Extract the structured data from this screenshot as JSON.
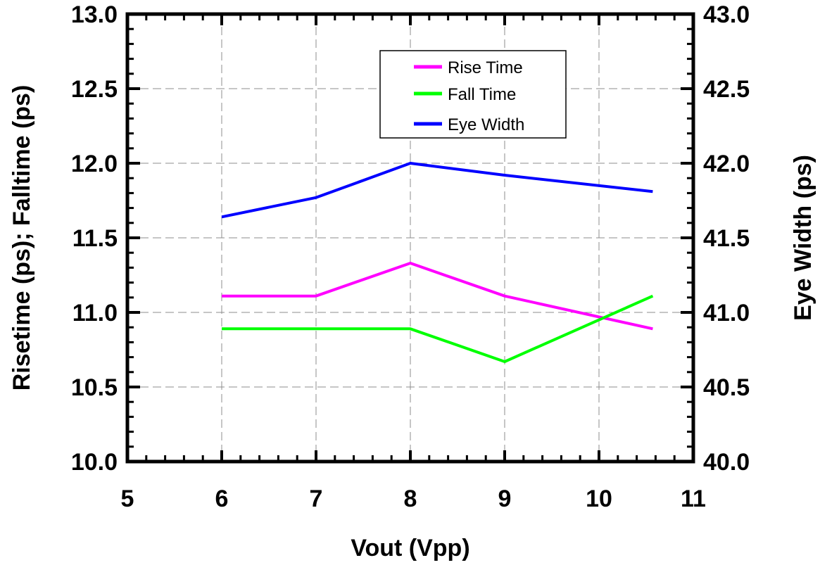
{
  "chart_data": {
    "type": "line",
    "xlabel": "Vout (Vpp)",
    "ylabel": "Risetime (ps); Falltime (ps)",
    "y2label": "Eye Width (ps)",
    "xlim": [
      5,
      11
    ],
    "ylim": [
      10.0,
      13.0
    ],
    "y2lim": [
      40.0,
      43.0
    ],
    "xticks": [
      "5",
      "6",
      "7",
      "8",
      "9",
      "10",
      "11"
    ],
    "yticks": [
      "10.0",
      "10.5",
      "11.0",
      "11.5",
      "12.0",
      "12.5",
      "13.0"
    ],
    "y2ticks": [
      "40.0",
      "40.5",
      "41.0",
      "41.5",
      "42.0",
      "42.5",
      "43.0"
    ],
    "grid": true,
    "legend_position": "top-center",
    "series": [
      {
        "name": "Rise Time",
        "axis": "left",
        "color": "#ff00ff",
        "points": [
          [
            6,
            11.11
          ],
          [
            7,
            11.11
          ],
          [
            8,
            11.33
          ],
          [
            9,
            11.11
          ],
          [
            10.57,
            10.89
          ]
        ]
      },
      {
        "name": "Fall Time",
        "axis": "left",
        "color": "#00ff00",
        "points": [
          [
            6,
            10.89
          ],
          [
            7,
            10.89
          ],
          [
            8,
            10.89
          ],
          [
            9,
            10.67
          ],
          [
            10.57,
            11.11
          ]
        ]
      },
      {
        "name": "Eye Width",
        "axis": "right",
        "color": "#0000ff",
        "points": [
          [
            6,
            41.64
          ],
          [
            7,
            41.77
          ],
          [
            8,
            42.0
          ],
          [
            9,
            41.92
          ],
          [
            10.57,
            41.81
          ]
        ]
      }
    ]
  }
}
